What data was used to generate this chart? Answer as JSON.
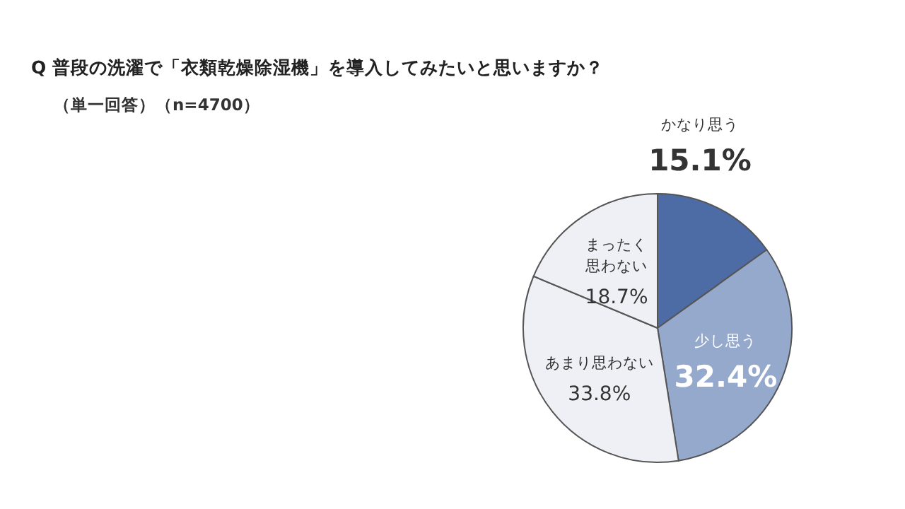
{
  "chart_data": {
    "type": "pie",
    "title": "Q 普段の洗濯で「衣類乾燥除湿機」を導入してみたいと思いますか？",
    "subtitle": "（単一回答）（n=4700）",
    "categories": [
      "かなり思う",
      "少し思う",
      "あまり思わない",
      "まったく思わない"
    ],
    "values": [
      15.1,
      32.4,
      33.8,
      18.7
    ],
    "colors": [
      "#4d6ca6",
      "#95a9cc",
      "#eef0f5",
      "#eef0f5"
    ],
    "value_labels": [
      "15.1%",
      "32.4%",
      "33.8%",
      "18.7%"
    ]
  }
}
